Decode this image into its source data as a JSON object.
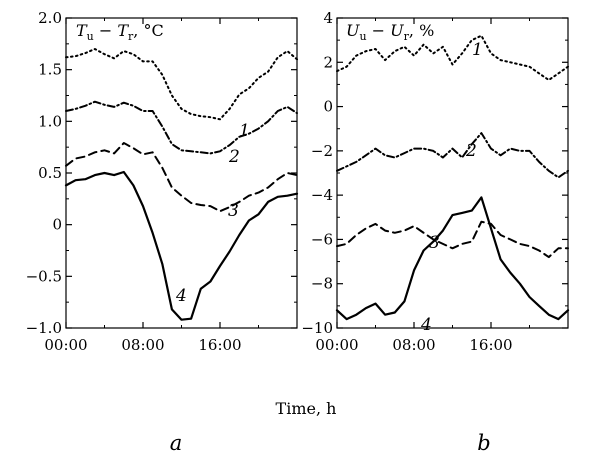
{
  "chart_data": [
    {
      "type": "line",
      "panel_label": "a",
      "ylabel": "T_u − T_r, °C",
      "ylabel_parts": {
        "main": "T",
        "sub1": "u",
        "mid": " − T",
        "sub2": "r",
        "unit": ", °C"
      },
      "xlim": [
        0,
        24
      ],
      "ylim": [
        -1.0,
        2.0
      ],
      "x_ticks": [
        0,
        8,
        16
      ],
      "x_tick_labels": [
        "00:00",
        "08:00",
        "16:00"
      ],
      "y_ticks": [
        2.0,
        1.5,
        1.0,
        0.5,
        0,
        -0.5,
        -1.0
      ],
      "y_tick_labels": [
        "2.0",
        "1.5",
        "1.0",
        "0.5",
        "0",
        "−0.5",
        "−1.0"
      ],
      "series": [
        {
          "name": "1",
          "style": "dotted",
          "x": [
            0,
            1,
            2,
            3,
            4,
            5,
            6,
            7,
            8,
            9,
            10,
            11,
            12,
            13,
            14,
            15,
            16,
            17,
            18,
            19,
            20,
            21,
            22,
            23,
            24
          ],
          "y": [
            1.62,
            1.63,
            1.66,
            1.7,
            1.65,
            1.61,
            1.68,
            1.65,
            1.58,
            1.58,
            1.45,
            1.25,
            1.12,
            1.07,
            1.05,
            1.04,
            1.02,
            1.12,
            1.26,
            1.32,
            1.42,
            1.48,
            1.62,
            1.68,
            1.6
          ]
        },
        {
          "name": "2",
          "style": "dashdot",
          "x": [
            0,
            1,
            2,
            3,
            4,
            5,
            6,
            7,
            8,
            9,
            10,
            11,
            12,
            13,
            14,
            15,
            16,
            17,
            18,
            19,
            20,
            21,
            22,
            23,
            24
          ],
          "y": [
            1.1,
            1.12,
            1.15,
            1.19,
            1.16,
            1.14,
            1.18,
            1.15,
            1.1,
            1.1,
            0.95,
            0.78,
            0.72,
            0.71,
            0.7,
            0.69,
            0.71,
            0.77,
            0.85,
            0.88,
            0.93,
            1.0,
            1.1,
            1.14,
            1.08
          ]
        },
        {
          "name": "3",
          "style": "dashed",
          "x": [
            0,
            1,
            2,
            3,
            4,
            5,
            6,
            7,
            8,
            9,
            10,
            11,
            12,
            13,
            14,
            15,
            16,
            17,
            18,
            19,
            20,
            21,
            22,
            23,
            24
          ],
          "y": [
            0.57,
            0.64,
            0.66,
            0.7,
            0.72,
            0.69,
            0.79,
            0.74,
            0.68,
            0.7,
            0.55,
            0.36,
            0.28,
            0.21,
            0.19,
            0.18,
            0.13,
            0.17,
            0.22,
            0.28,
            0.31,
            0.36,
            0.44,
            0.5,
            0.48
          ]
        },
        {
          "name": "4",
          "style": "solid",
          "x": [
            0,
            1,
            2,
            3,
            4,
            5,
            6,
            7,
            8,
            9,
            10,
            11,
            12,
            13,
            14,
            15,
            16,
            17,
            18,
            19,
            20,
            21,
            22,
            23,
            24
          ],
          "y": [
            0.38,
            0.43,
            0.44,
            0.48,
            0.5,
            0.48,
            0.51,
            0.38,
            0.18,
            -0.08,
            -0.38,
            -0.82,
            -0.92,
            -0.91,
            -0.62,
            -0.55,
            -0.4,
            -0.26,
            -0.1,
            0.04,
            0.1,
            0.22,
            0.27,
            0.28,
            0.3
          ]
        }
      ]
    },
    {
      "type": "line",
      "panel_label": "b",
      "ylabel": "U_u − U_r, %",
      "ylabel_parts": {
        "main": "U",
        "sub1": "u",
        "mid": " − U",
        "sub2": "r",
        "unit": ", %"
      },
      "xlim": [
        0,
        24
      ],
      "ylim": [
        -10,
        4
      ],
      "x_ticks": [
        0,
        8,
        16
      ],
      "x_tick_labels": [
        "00:00",
        "08:00",
        "16:00"
      ],
      "y_ticks": [
        4,
        2,
        0,
        -2,
        -4,
        -6,
        -8,
        -10
      ],
      "y_tick_labels": [
        "4",
        "2",
        "0",
        "−2",
        "−4",
        "−6",
        "−8",
        "−10"
      ],
      "series": [
        {
          "name": "1",
          "style": "dotted",
          "x": [
            0,
            1,
            2,
            3,
            4,
            5,
            6,
            7,
            8,
            9,
            10,
            11,
            12,
            13,
            14,
            15,
            16,
            17,
            18,
            19,
            20,
            21,
            22,
            23,
            24
          ],
          "y": [
            1.6,
            1.8,
            2.3,
            2.5,
            2.6,
            2.1,
            2.5,
            2.7,
            2.3,
            2.8,
            2.4,
            2.7,
            1.9,
            2.4,
            3.0,
            3.2,
            2.4,
            2.1,
            2.0,
            1.9,
            1.8,
            1.5,
            1.2,
            1.5,
            1.8
          ]
        },
        {
          "name": "2",
          "style": "dashdot",
          "x": [
            0,
            1,
            2,
            3,
            4,
            5,
            6,
            7,
            8,
            9,
            10,
            11,
            12,
            13,
            14,
            15,
            16,
            17,
            18,
            19,
            20,
            21,
            22,
            23,
            24
          ],
          "y": [
            -2.9,
            -2.7,
            -2.5,
            -2.2,
            -1.9,
            -2.2,
            -2.3,
            -2.1,
            -1.9,
            -1.9,
            -2.0,
            -2.3,
            -1.9,
            -2.3,
            -1.7,
            -1.2,
            -1.9,
            -2.2,
            -1.9,
            -2.0,
            -2.0,
            -2.5,
            -2.9,
            -3.2,
            -2.9
          ]
        },
        {
          "name": "3",
          "style": "dashed",
          "x": [
            0,
            1,
            2,
            3,
            4,
            5,
            6,
            7,
            8,
            9,
            10,
            11,
            12,
            13,
            14,
            15,
            16,
            17,
            18,
            19,
            20,
            21,
            22,
            23,
            24
          ],
          "y": [
            -6.3,
            -6.2,
            -5.8,
            -5.5,
            -5.3,
            -5.6,
            -5.7,
            -5.6,
            -5.4,
            -5.7,
            -6.0,
            -6.2,
            -6.4,
            -6.2,
            -6.1,
            -5.2,
            -5.3,
            -5.8,
            -6.0,
            -6.2,
            -6.3,
            -6.5,
            -6.8,
            -6.4,
            -6.4
          ]
        },
        {
          "name": "4",
          "style": "solid",
          "x": [
            0,
            1,
            2,
            3,
            4,
            5,
            6,
            7,
            8,
            9,
            10,
            11,
            12,
            13,
            14,
            15,
            16,
            17,
            18,
            19,
            20,
            21,
            22,
            23,
            24
          ],
          "y": [
            -9.2,
            -9.6,
            -9.4,
            -9.1,
            -8.9,
            -9.4,
            -9.3,
            -8.8,
            -7.4,
            -6.5,
            -6.1,
            -5.6,
            -4.9,
            -4.8,
            -4.7,
            -4.1,
            -5.5,
            -6.9,
            -7.5,
            -8.0,
            -8.6,
            -9.0,
            -9.4,
            -9.6,
            -9.2
          ]
        }
      ]
    }
  ],
  "shared_xlabel": "Time, h"
}
